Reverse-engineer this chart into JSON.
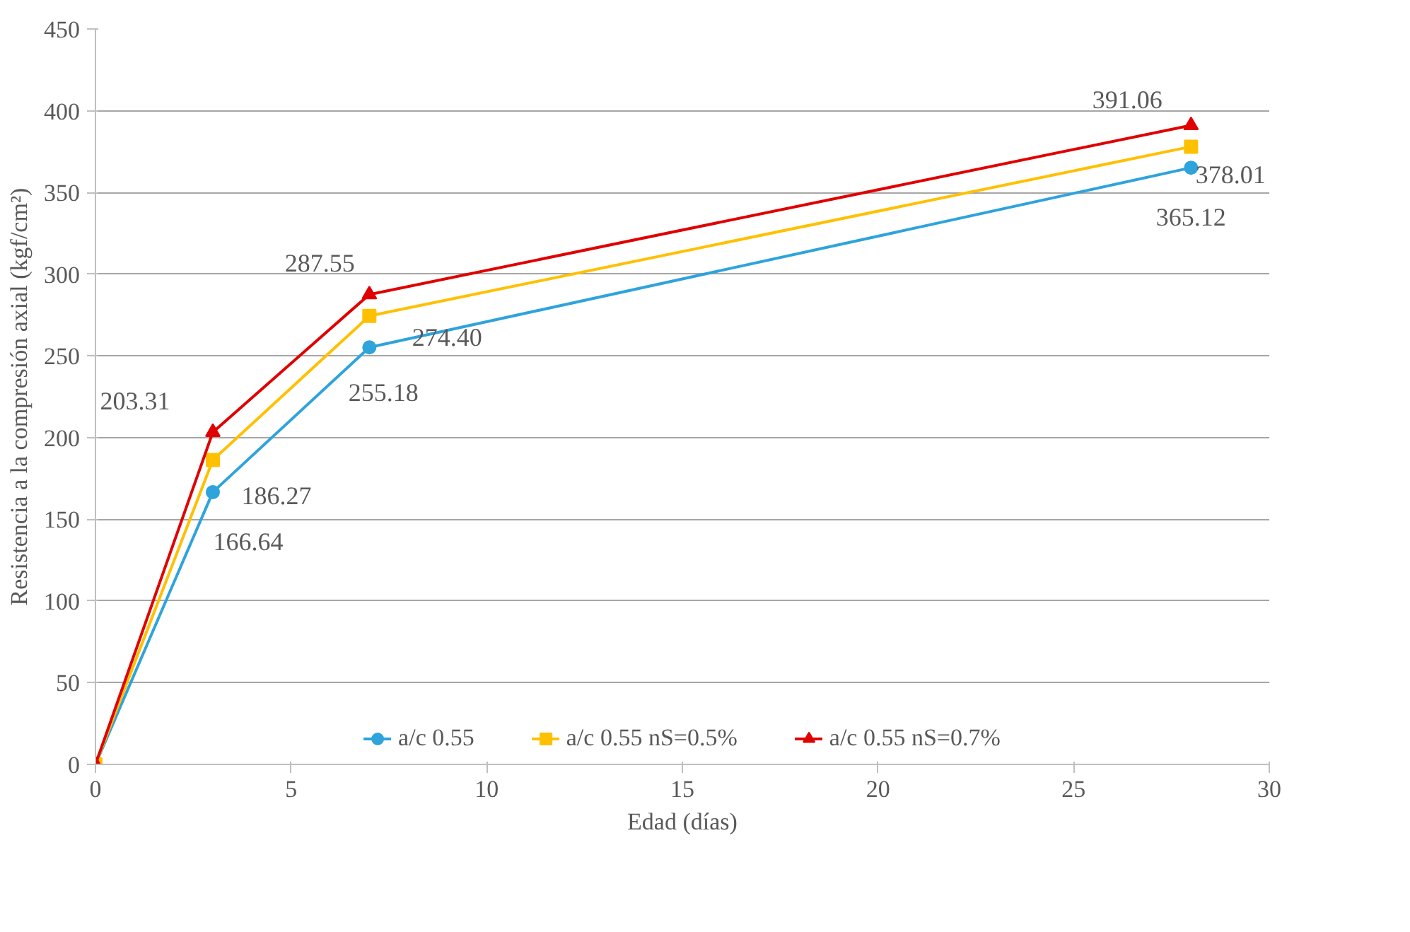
{
  "chart_data": {
    "type": "line",
    "xlabel": "Edad (días)",
    "ylabel": "Resistencia a la compresión axial (kgf/cm²)",
    "x": [
      0,
      3,
      7,
      28
    ],
    "series": [
      {
        "name": "a/c 0.55",
        "color": "#2ea3dc",
        "marker": "circle",
        "values": [
          0,
          166.64,
          255.18,
          365.12
        ],
        "value_labels": [
          null,
          "166.64",
          "255.18",
          "365.12"
        ]
      },
      {
        "name": "a/c 0.55 nS=0.5%",
        "color": "#ffc000",
        "marker": "square",
        "values": [
          0,
          186.27,
          274.4,
          378.01
        ],
        "value_labels": [
          null,
          "186.27",
          "274.40",
          "378.01"
        ]
      },
      {
        "name": "a/c 0.55 nS=0.7%",
        "color": "#e00000",
        "marker": "triangle",
        "values": [
          0,
          203.31,
          287.55,
          391.06
        ],
        "value_labels": [
          null,
          "203.31",
          "287.55",
          "391.06"
        ]
      }
    ],
    "xlim": [
      0,
      30
    ],
    "xticks": [
      0,
      5,
      10,
      15,
      20,
      25,
      30
    ],
    "ylim": [
      0,
      450
    ],
    "yticks": [
      0,
      50,
      100,
      150,
      200,
      250,
      300,
      350,
      400,
      450
    ],
    "grid": "y",
    "legend": "bottom",
    "line_style": "solid"
  }
}
